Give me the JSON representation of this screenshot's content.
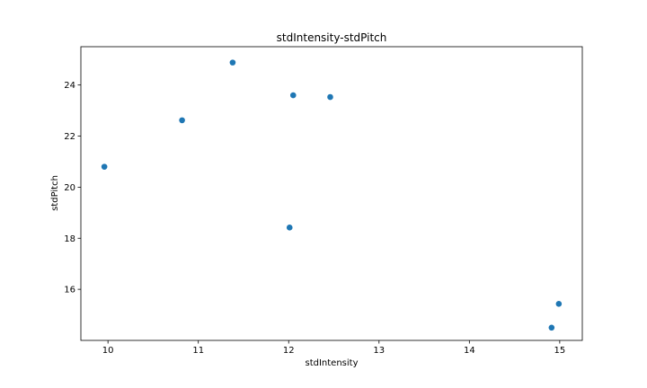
{
  "chart_data": {
    "type": "scatter",
    "title": "stdIntensity-stdPitch",
    "xlabel": "stdIntensity",
    "ylabel": "stdPitch",
    "xlim": [
      9.7,
      15.25
    ],
    "ylim": [
      14.0,
      25.5
    ],
    "xticks": [
      10,
      11,
      12,
      13,
      14,
      15
    ],
    "yticks": [
      16,
      18,
      20,
      22,
      24
    ],
    "grid": false,
    "series": [
      {
        "color": "#1f77b4",
        "points": [
          {
            "x": 9.96,
            "y": 20.8
          },
          {
            "x": 10.82,
            "y": 22.62
          },
          {
            "x": 11.38,
            "y": 24.88
          },
          {
            "x": 12.05,
            "y": 23.6
          },
          {
            "x": 12.46,
            "y": 23.53
          },
          {
            "x": 12.01,
            "y": 18.42
          },
          {
            "x": 14.91,
            "y": 14.5
          },
          {
            "x": 14.99,
            "y": 15.43
          }
        ]
      }
    ]
  }
}
